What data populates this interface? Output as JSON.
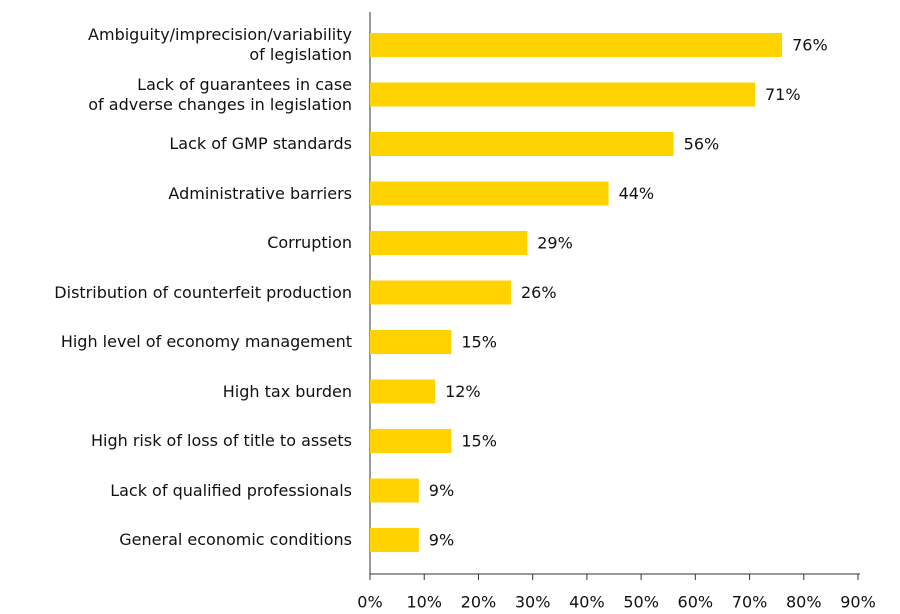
{
  "chart_data": {
    "type": "bar",
    "orientation": "horizontal",
    "categories": [
      "Ambiguity/imprecision/variability\nof legislation",
      "Lack of guarantees in case\nof adverse changes in legislation",
      "Lack of GMP standards",
      "Administrative barriers",
      "Corruption",
      "Distribution of counterfeit production",
      "High level of economy management",
      "High tax burden",
      "High risk of loss of title to assets",
      "Lack of qualified professionals",
      "General economic conditions"
    ],
    "values": [
      76,
      71,
      56,
      44,
      29,
      26,
      15,
      12,
      15,
      9,
      9
    ],
    "value_labels": [
      "76%",
      "71%",
      "56%",
      "44%",
      "29%",
      "26%",
      "15%",
      "12%",
      "15%",
      "9%",
      "9%"
    ],
    "color": "#ffd200",
    "xlim": [
      0,
      90
    ],
    "xticks": [
      {
        "value": 0,
        "label": "0%"
      },
      {
        "value": 10,
        "label": "10%"
      },
      {
        "value": 20,
        "label": "20%"
      },
      {
        "value": 30,
        "label": "30%"
      },
      {
        "value": 40,
        "label": "40%"
      },
      {
        "value": 50,
        "label": "50%"
      },
      {
        "value": 60,
        "label": "60%"
      },
      {
        "value": 70,
        "label": "70%"
      },
      {
        "value": 80,
        "label": "80%"
      },
      {
        "value": 90,
        "label": "90%"
      }
    ],
    "grid": false
  }
}
